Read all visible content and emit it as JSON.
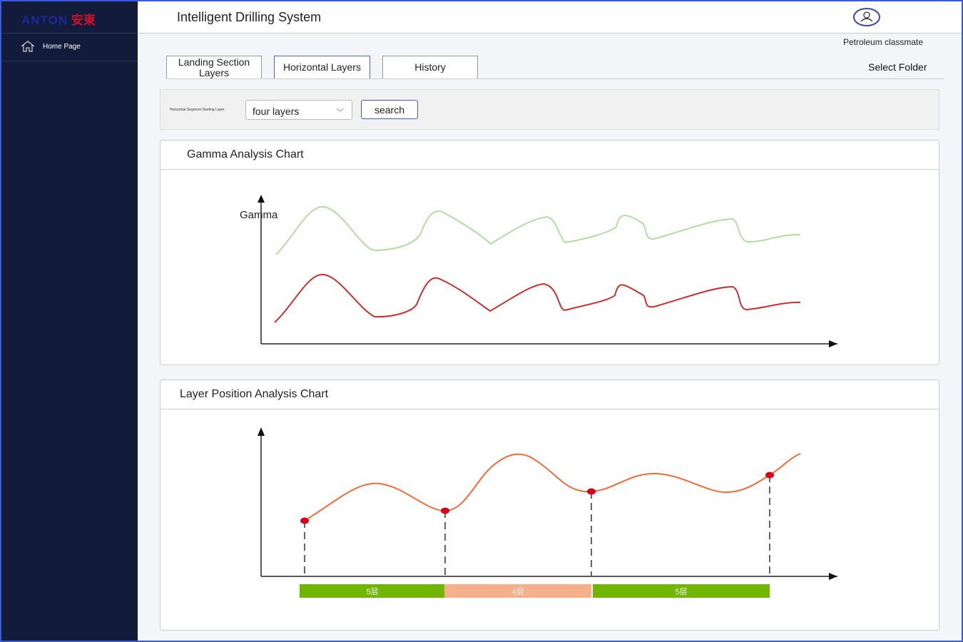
{
  "sidebar": {
    "logo": {
      "latin": "ANTON",
      "chinese": "安東"
    },
    "menu": [
      "Home Page"
    ]
  },
  "header": {
    "title": "Intelligent Drilling System",
    "user": "Petroleum classmate"
  },
  "tabs": [
    "Landing Section Layers",
    "Horizontal Layers",
    "History"
  ],
  "select_folder": "Select Folder",
  "filter": {
    "label": "Horizontal Segment Starting Layer",
    "select": "four layers",
    "button": "search"
  },
  "gamma_panel": {
    "title": "Gamma Analysis Chart",
    "axis_label": "Gamma"
  },
  "layer_panel": {
    "title": "Layer Position Analysis Chart",
    "bands": [
      "5层",
      "4层",
      "5层"
    ]
  }
}
